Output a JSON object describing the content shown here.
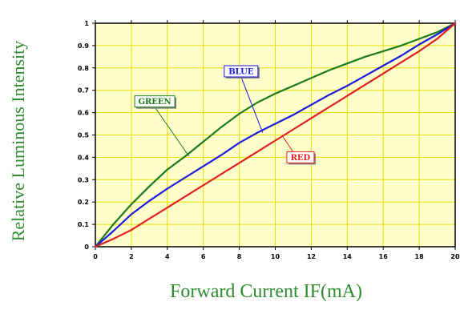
{
  "chart_data": {
    "type": "line",
    "title": "",
    "xlabel": "Forward Current IF(mA)",
    "ylabel": "Relative Luminous Intensity",
    "xlim": [
      0,
      20
    ],
    "ylim": [
      0,
      1
    ],
    "x_ticks": [
      0,
      2,
      4,
      6,
      8,
      10,
      12,
      14,
      16,
      18,
      20
    ],
    "y_ticks": [
      0,
      0.1,
      0.2,
      0.3,
      0.4,
      0.5,
      0.6,
      0.7,
      0.8,
      0.9,
      1
    ],
    "x_tick_labels": [
      "0",
      "2",
      "4",
      "6",
      "8",
      "10",
      "12",
      "14",
      "16",
      "18",
      "20"
    ],
    "y_tick_labels": [
      "0",
      "0.1",
      "0.2",
      "0.3",
      "0.4",
      "0.5",
      "0.6",
      "0.7",
      "0.8",
      "0.9",
      "1"
    ],
    "grid": true,
    "legend": "none",
    "colors": {
      "plot_background": "#ffffcc",
      "grid": "#e8dc00",
      "axis_title": "#2e8b2e",
      "green": "#1a7a1a",
      "blue": "#1a1adc",
      "red": "#e02020"
    },
    "series": [
      {
        "name": "GREEN",
        "color": "#1a7a1a",
        "x": [
          0,
          1,
          2,
          3,
          4,
          5,
          6,
          7,
          8,
          9,
          10,
          11,
          12,
          13,
          14,
          15,
          16,
          17,
          18,
          19,
          20
        ],
        "y": [
          0,
          0.1,
          0.19,
          0.27,
          0.345,
          0.405,
          0.47,
          0.535,
          0.595,
          0.645,
          0.685,
          0.72,
          0.755,
          0.79,
          0.82,
          0.85,
          0.875,
          0.9,
          0.93,
          0.96,
          1.0
        ]
      },
      {
        "name": "BLUE",
        "color": "#1a1adc",
        "x": [
          0,
          1,
          2,
          3,
          4,
          5,
          6,
          7,
          8,
          9,
          10,
          11,
          12,
          13,
          14,
          15,
          16,
          17,
          18,
          19,
          20
        ],
        "y": [
          0,
          0.07,
          0.145,
          0.205,
          0.26,
          0.31,
          0.36,
          0.41,
          0.465,
          0.51,
          0.55,
          0.59,
          0.635,
          0.68,
          0.72,
          0.765,
          0.81,
          0.855,
          0.905,
          0.95,
          1.0
        ]
      },
      {
        "name": "RED",
        "color": "#e02020",
        "x": [
          0,
          1,
          2,
          3,
          4,
          5,
          6,
          7,
          8,
          9,
          10,
          11,
          12,
          13,
          14,
          15,
          16,
          17,
          18,
          19,
          20
        ],
        "y": [
          0,
          0.035,
          0.075,
          0.125,
          0.175,
          0.225,
          0.275,
          0.325,
          0.375,
          0.425,
          0.475,
          0.525,
          0.575,
          0.625,
          0.675,
          0.725,
          0.775,
          0.825,
          0.875,
          0.93,
          1.0
        ]
      }
    ],
    "annotations": [
      {
        "text": "GREEN",
        "series": "GREEN",
        "point_x": 5.2,
        "point_y": 0.405,
        "label_x": 3.3,
        "label_y": 0.65
      },
      {
        "text": "BLUE",
        "series": "BLUE",
        "point_x": 9.3,
        "point_y": 0.51,
        "label_x": 8.1,
        "label_y": 0.785
      },
      {
        "text": "RED",
        "series": "RED",
        "point_x": 10.4,
        "point_y": 0.495,
        "label_x": 11.4,
        "label_y": 0.4
      }
    ]
  }
}
